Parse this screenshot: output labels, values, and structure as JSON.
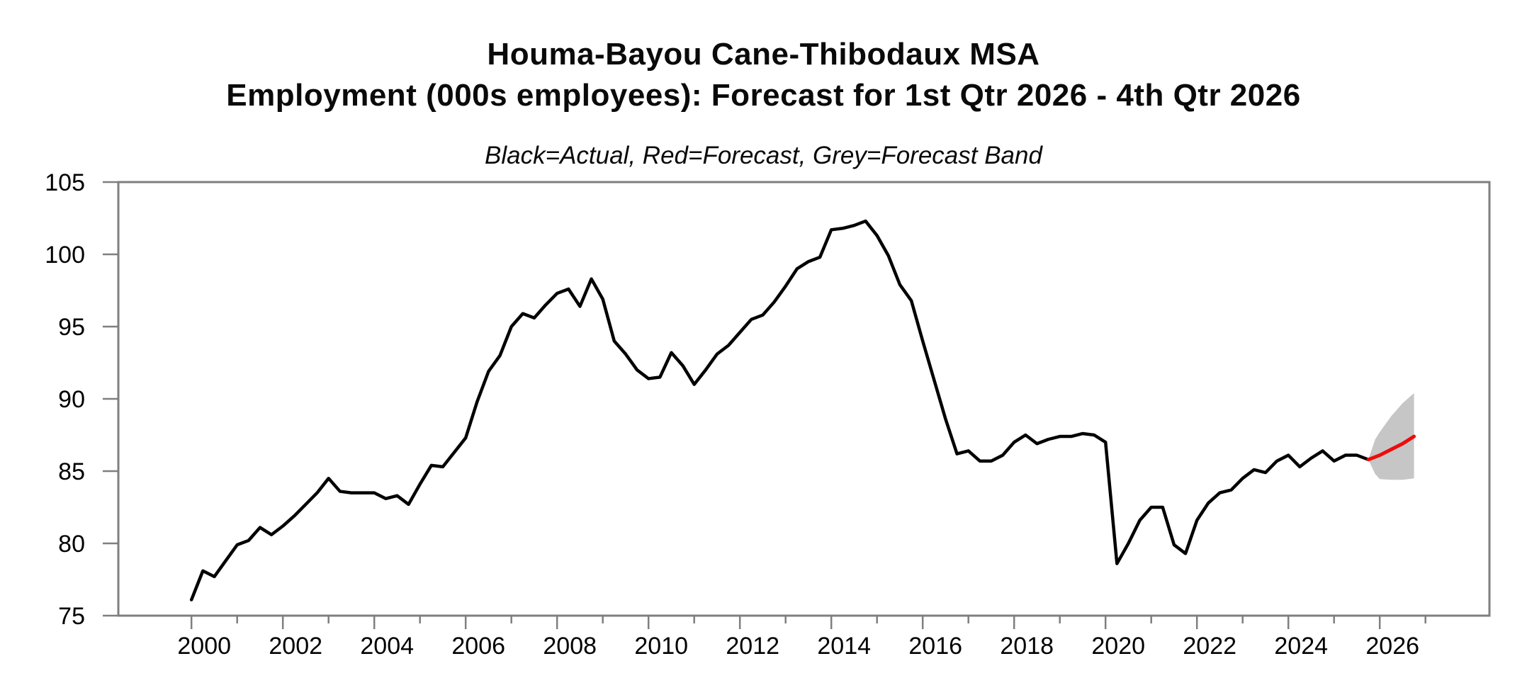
{
  "page": {
    "title_line1": "Houma-Bayou Cane-Thibodaux MSA",
    "title_line2": "Employment (000s employees): Forecast for 1st Qtr 2026 - 4th Qtr 2026",
    "subtitle": "Black=Actual, Red=Forecast, Grey=Forecast Band"
  },
  "colors": {
    "actual_line": "#000000",
    "forecast_line": "#ee0c0c",
    "forecast_band": "#c6c6c6",
    "axis": "#7f7f7f",
    "tick_label": "#000000"
  },
  "chart_data": {
    "type": "line",
    "title": "Houma-Bayou Cane-Thibodaux MSA",
    "subtitle": "Employment (000s employees): Forecast for 1st Qtr 2026 - 4th Qtr 2026",
    "legend_note": "Black=Actual, Red=Forecast, Grey=Forecast Band",
    "xlabel": "",
    "ylabel": "",
    "grid": false,
    "legend_position": "none",
    "ylim": [
      75,
      105
    ],
    "yticks": [
      75,
      80,
      85,
      90,
      95,
      100,
      105
    ],
    "xlim": [
      1998.4,
      2028.4
    ],
    "xticks_major": [
      2000,
      2002,
      2004,
      2006,
      2008,
      2010,
      2012,
      2014,
      2016,
      2018,
      2020,
      2022,
      2024,
      2026
    ],
    "xticks_minor": [
      2001,
      2003,
      2005,
      2007,
      2009,
      2011,
      2013,
      2015,
      2017,
      2019,
      2021,
      2023,
      2025,
      2027
    ],
    "series": [
      {
        "name": "Actual",
        "style": "black solid line",
        "frequency": "quarterly",
        "start_year": 2000.0,
        "step": 0.25,
        "values": [
          76.1,
          78.1,
          77.7,
          78.8,
          79.9,
          80.2,
          81.1,
          80.6,
          81.2,
          81.9,
          82.7,
          83.5,
          84.5,
          83.6,
          83.5,
          83.5,
          83.5,
          83.1,
          83.3,
          82.7,
          84.1,
          85.4,
          85.3,
          86.3,
          87.3,
          89.8,
          91.9,
          93.0,
          95.0,
          95.9,
          95.6,
          96.5,
          97.3,
          97.6,
          96.4,
          98.3,
          96.9,
          94.0,
          93.1,
          92.0,
          91.4,
          91.5,
          93.2,
          92.3,
          91.0,
          92.0,
          93.1,
          93.7,
          94.6,
          95.5,
          95.8,
          96.7,
          97.8,
          99.0,
          99.5,
          99.8,
          101.7,
          101.8,
          102.0,
          102.3,
          101.3,
          99.9,
          97.9,
          96.8,
          94.0,
          91.3,
          88.6,
          86.2,
          86.4,
          85.7,
          85.7,
          86.1,
          87.0,
          87.5,
          86.9,
          87.2,
          87.4,
          87.4,
          87.6,
          87.5,
          87.0,
          78.6,
          80.0,
          81.6,
          82.5,
          82.5,
          79.9,
          79.3,
          81.6,
          82.8,
          83.5,
          83.7,
          84.5,
          85.1,
          84.9,
          85.7,
          86.1,
          85.3,
          85.9,
          86.4,
          85.7,
          86.1,
          86.1,
          85.8
        ]
      },
      {
        "name": "Forecast",
        "style": "red solid line",
        "x": [
          2025.75,
          2026.0,
          2026.25,
          2026.5,
          2026.75
        ],
        "values": [
          85.8,
          86.1,
          86.5,
          86.9,
          87.4
        ]
      },
      {
        "name": "Forecast band",
        "style": "grey filled band",
        "x": [
          2025.75,
          2025.9,
          2026.0,
          2026.25,
          2026.5,
          2026.75
        ],
        "upper": [
          85.8,
          87.2,
          87.7,
          88.8,
          89.7,
          90.4
        ],
        "lower": [
          85.8,
          84.8,
          84.45,
          84.4,
          84.4,
          84.5
        ]
      }
    ]
  }
}
